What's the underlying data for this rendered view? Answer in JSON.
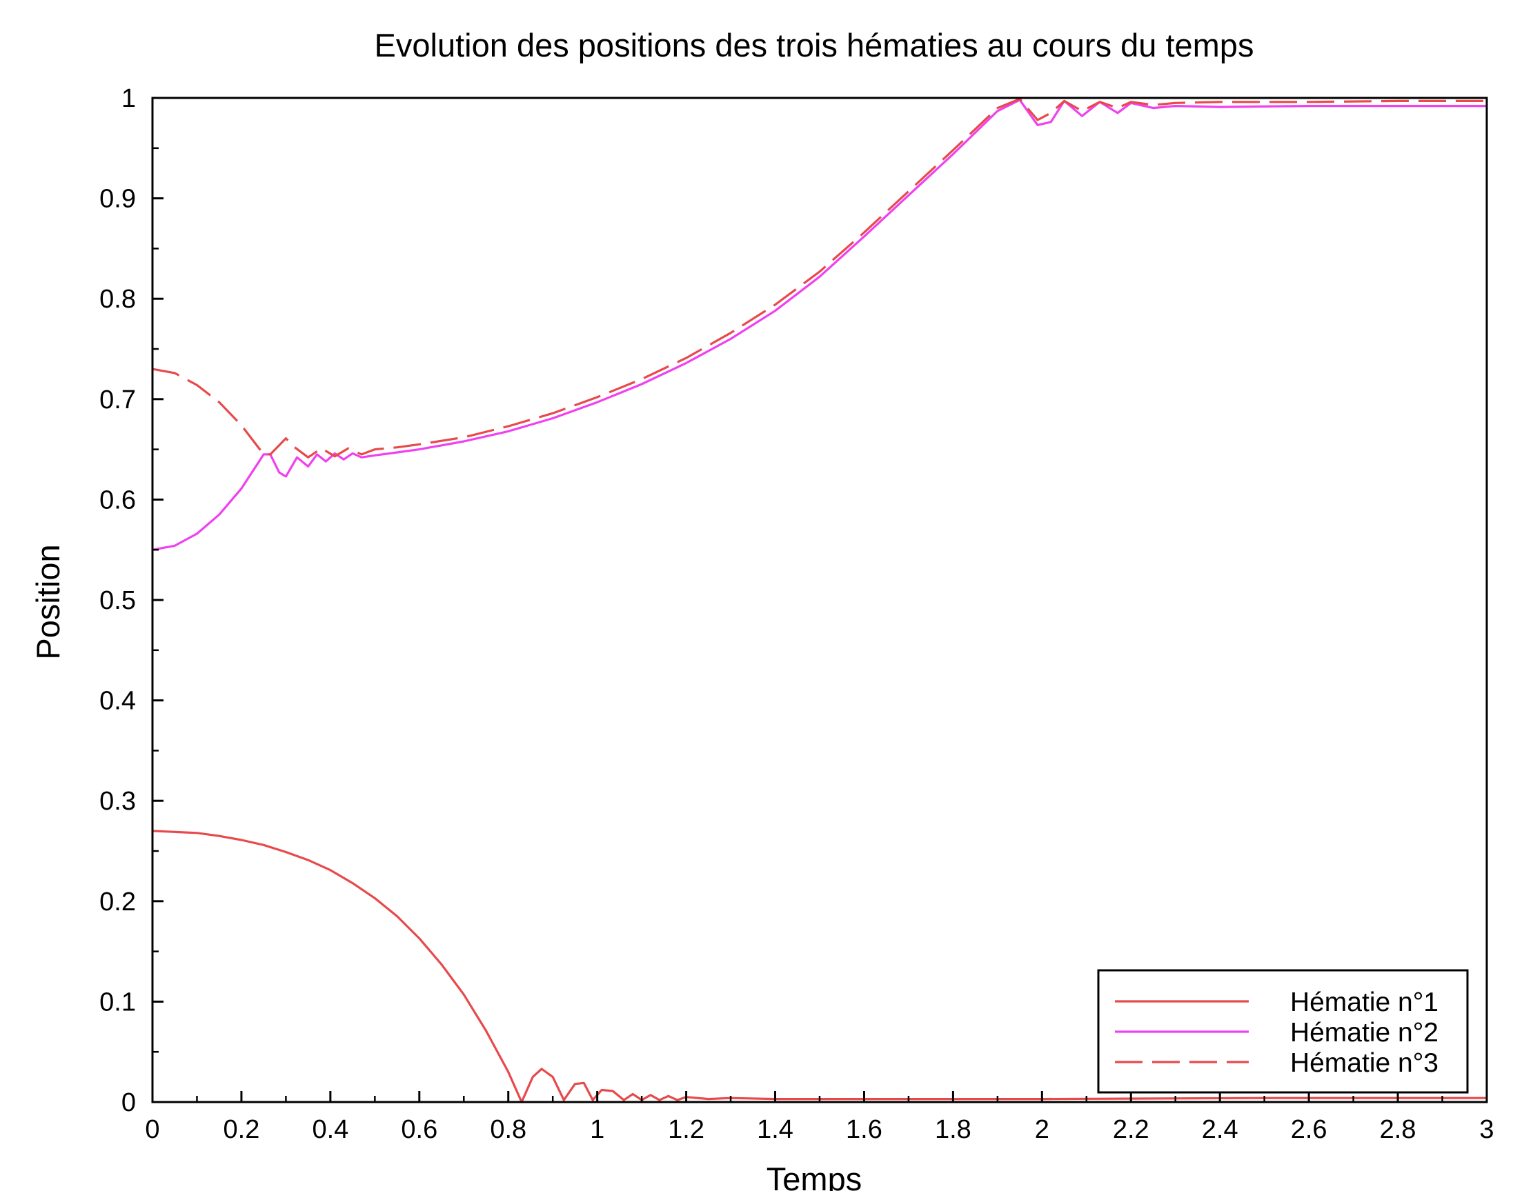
{
  "chart_data": {
    "type": "line",
    "title": "Evolution des positions des trois hématies au cours du temps",
    "xlabel": "Temps",
    "ylabel": "Position",
    "xlim": [
      0,
      3
    ],
    "ylim": [
      0,
      1
    ],
    "xticks": [
      "0",
      "0.2",
      "0.4",
      "0.6",
      "0.8",
      "1",
      "1.2",
      "1.4",
      "1.6",
      "1.8",
      "2",
      "2.2",
      "2.4",
      "2.6",
      "2.8",
      "3"
    ],
    "yticks": [
      "0",
      "0.1",
      "0.2",
      "0.3",
      "0.4",
      "0.5",
      "0.6",
      "0.7",
      "0.8",
      "0.9",
      "1"
    ],
    "grid": false,
    "legend_position": "bottom-right",
    "series": [
      {
        "name": "Hématie n°1",
        "color": "#e8494b",
        "dash": "solid",
        "x": [
          0,
          0.05,
          0.1,
          0.15,
          0.2,
          0.25,
          0.3,
          0.35,
          0.4,
          0.45,
          0.5,
          0.55,
          0.6,
          0.65,
          0.7,
          0.75,
          0.8,
          0.83,
          0.855,
          0.875,
          0.9,
          0.925,
          0.95,
          0.97,
          0.99,
          1.01,
          1.035,
          1.06,
          1.08,
          1.1,
          1.12,
          1.14,
          1.16,
          1.18,
          1.2,
          1.25,
          1.3,
          1.4,
          1.6,
          1.8,
          2.0,
          2.5,
          3.0
        ],
        "y": [
          0.27,
          0.269,
          0.268,
          0.265,
          0.261,
          0.256,
          0.249,
          0.241,
          0.231,
          0.218,
          0.203,
          0.185,
          0.163,
          0.137,
          0.107,
          0.071,
          0.03,
          0.0,
          0.025,
          0.033,
          0.025,
          0.002,
          0.018,
          0.019,
          0.002,
          0.012,
          0.011,
          0.002,
          0.008,
          0.002,
          0.007,
          0.002,
          0.006,
          0.002,
          0.005,
          0.003,
          0.004,
          0.003,
          0.003,
          0.003,
          0.003,
          0.004,
          0.004
        ]
      },
      {
        "name": "Hématie n°2",
        "color": "#f040f0",
        "dash": "solid",
        "x": [
          0,
          0.05,
          0.1,
          0.15,
          0.2,
          0.25,
          0.265,
          0.285,
          0.3,
          0.325,
          0.35,
          0.37,
          0.39,
          0.41,
          0.43,
          0.45,
          0.47,
          0.5,
          0.55,
          0.6,
          0.7,
          0.8,
          0.9,
          1.0,
          1.1,
          1.2,
          1.3,
          1.4,
          1.5,
          1.6,
          1.7,
          1.8,
          1.9,
          1.95,
          1.99,
          2.02,
          2.05,
          2.09,
          2.13,
          2.17,
          2.2,
          2.25,
          2.3,
          2.4,
          2.6,
          2.8,
          3.0
        ],
        "y": [
          0.55,
          0.554,
          0.566,
          0.585,
          0.611,
          0.645,
          0.645,
          0.627,
          0.623,
          0.642,
          0.633,
          0.645,
          0.638,
          0.646,
          0.64,
          0.646,
          0.642,
          0.644,
          0.647,
          0.65,
          0.658,
          0.668,
          0.681,
          0.697,
          0.715,
          0.736,
          0.76,
          0.788,
          0.822,
          0.862,
          0.903,
          0.944,
          0.987,
          0.998,
          0.973,
          0.976,
          0.997,
          0.982,
          0.996,
          0.985,
          0.995,
          0.99,
          0.992,
          0.991,
          0.992,
          0.992,
          0.992
        ]
      },
      {
        "name": "Hématie n°3",
        "color": "#e8494b",
        "dash": "long-dash",
        "x": [
          0,
          0.05,
          0.1,
          0.15,
          0.2,
          0.25,
          0.265,
          0.3,
          0.32,
          0.35,
          0.38,
          0.41,
          0.44,
          0.47,
          0.5,
          0.55,
          0.6,
          0.7,
          0.8,
          0.9,
          1.0,
          1.1,
          1.2,
          1.3,
          1.4,
          1.5,
          1.6,
          1.7,
          1.8,
          1.9,
          1.95,
          1.99,
          2.02,
          2.05,
          2.09,
          2.13,
          2.17,
          2.2,
          2.25,
          2.3,
          2.4,
          2.6,
          2.8,
          3.0
        ],
        "y": [
          0.73,
          0.726,
          0.714,
          0.697,
          0.674,
          0.645,
          0.645,
          0.661,
          0.652,
          0.642,
          0.651,
          0.643,
          0.651,
          0.645,
          0.65,
          0.652,
          0.655,
          0.662,
          0.673,
          0.686,
          0.702,
          0.72,
          0.741,
          0.766,
          0.794,
          0.827,
          0.866,
          0.907,
          0.948,
          0.99,
          0.999,
          0.978,
          0.985,
          0.997,
          0.987,
          0.996,
          0.99,
          0.996,
          0.993,
          0.995,
          0.996,
          0.996,
          0.997,
          0.997
        ]
      }
    ]
  }
}
